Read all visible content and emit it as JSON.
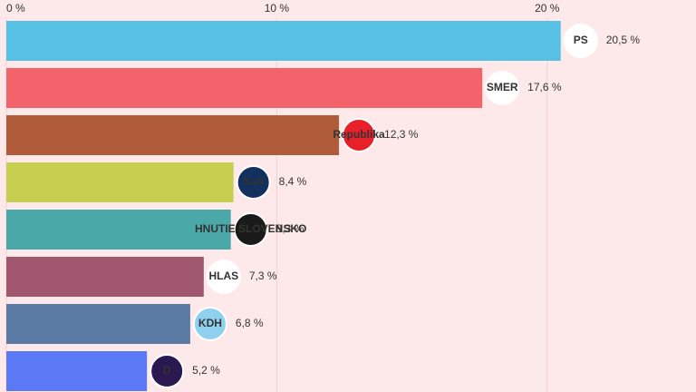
{
  "chart_data": {
    "type": "hbar",
    "categories": [
      "PS",
      "SMER",
      "Republika",
      "SaS",
      "HNUTIE SLOVENSKO",
      "HLAS",
      "KDH",
      "D"
    ],
    "values": [
      20.5,
      17.6,
      12.3,
      8.4,
      8.3,
      7.3,
      6.8,
      5.2
    ],
    "value_labels": [
      "20,5 %",
      "17,6 %",
      "12,3 %",
      "8,4 %",
      "8,3 %",
      "7,3 %",
      "6,8 %",
      "5,2 %"
    ],
    "colors": [
      "#56c1e3",
      "#f2636b",
      "#b05b3a",
      "#c6cf4f",
      "#4aa9a8",
      "#a0566f",
      "#5a7aa4",
      "#5b79f4"
    ],
    "logo_colors": [
      "#ffffff",
      "#ffffff",
      "#e8202a",
      "#13305e",
      "#1a1a1a",
      "#ffffff",
      "#8fd0ee",
      "#2a1850"
    ],
    "logo_text_colors": [
      "#1aa3dd",
      "#3b4a8c",
      "#ffffff",
      "#9ccd3c",
      "#e8202a",
      "#d6203a",
      "#ffffff",
      "#e040c0"
    ],
    "xlim": [
      0,
      25
    ],
    "xticks": [
      {
        "value": 0,
        "label": "0 %"
      },
      {
        "value": 10,
        "label": "10 %"
      },
      {
        "value": 20,
        "label": "20 %"
      }
    ],
    "grid": true
  }
}
